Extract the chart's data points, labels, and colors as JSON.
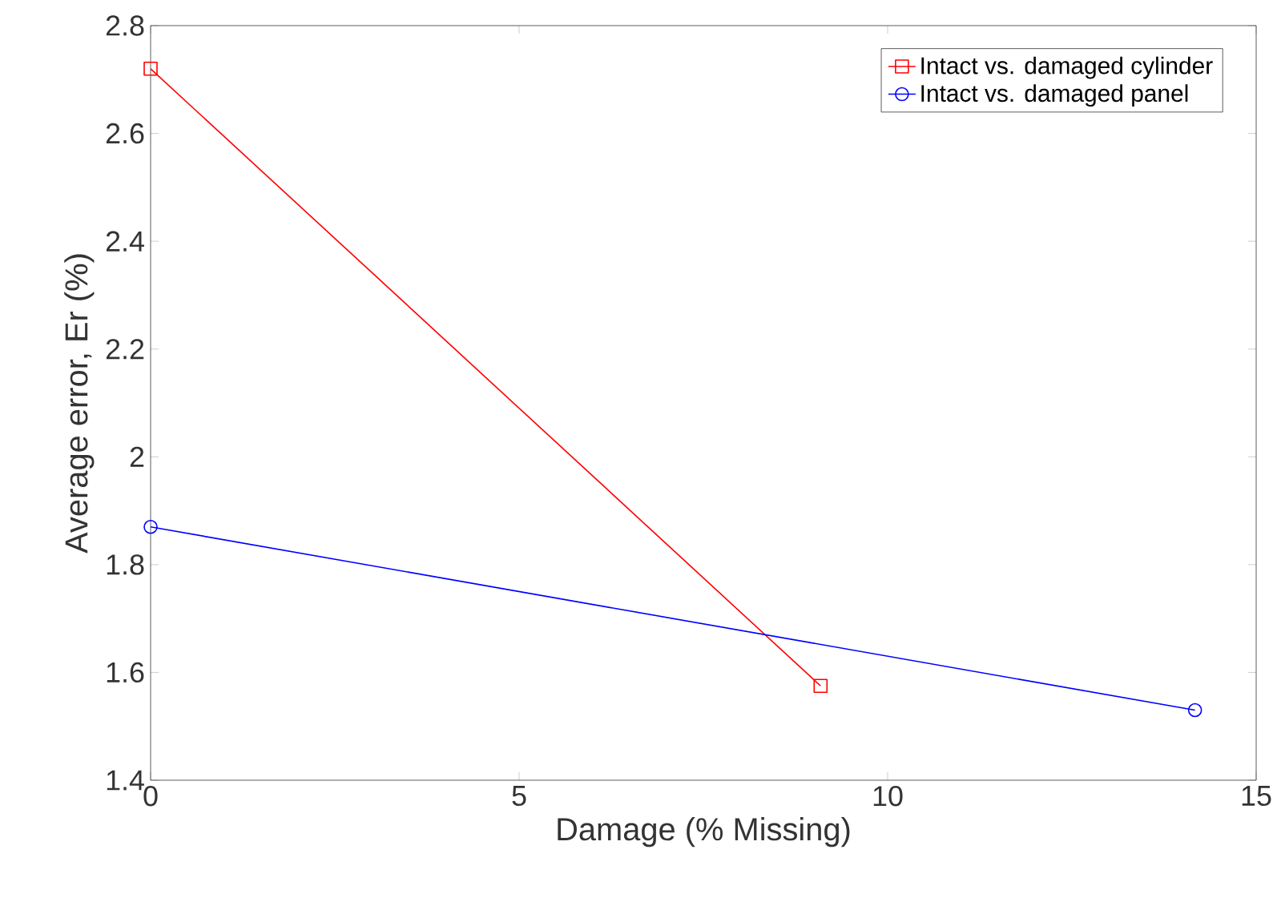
{
  "chart_data": {
    "type": "line",
    "xlabel": "Damage (% Missing)",
    "ylabel": "Average error, Er (%)",
    "series": [
      {
        "name": "Intact vs. damaged cylinder",
        "color": "#ff0000",
        "marker": "square",
        "x": [
          0,
          9.09
        ],
        "values": [
          2.72,
          1.575
        ]
      },
      {
        "name": "Intact vs. damaged panel",
        "color": "#0000ff",
        "marker": "circle",
        "x": [
          0,
          14.17
        ],
        "values": [
          1.87,
          1.53
        ]
      }
    ],
    "xlim": [
      0,
      15
    ],
    "xticks": [
      0,
      5,
      10,
      15
    ],
    "ylim": [
      1.4,
      2.8
    ],
    "yticks": [
      1.4,
      1.6,
      1.8,
      2,
      2.2,
      2.4,
      2.6,
      2.8
    ],
    "legend": "top right",
    "grid": false,
    "line_style": "solid"
  }
}
